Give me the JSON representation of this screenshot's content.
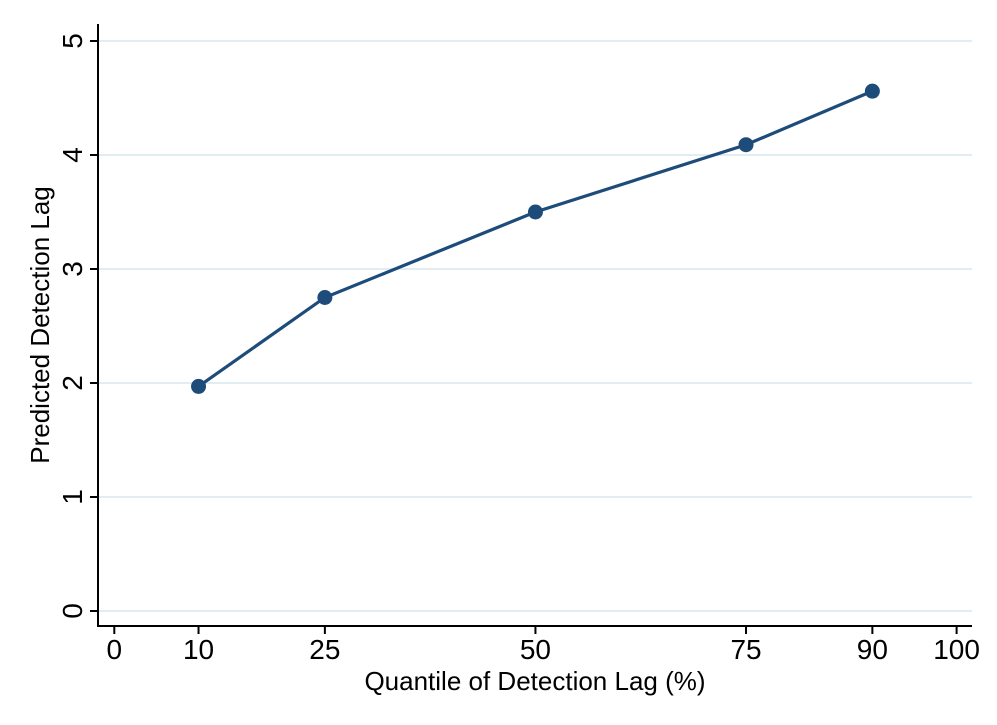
{
  "chart_data": {
    "type": "line",
    "title": "",
    "xlabel": "Quantile of Detection Lag (%)",
    "ylabel": "Predicted Detection Lag",
    "series": [
      {
        "name": "Predicted Detection Lag",
        "x": [
          10,
          25,
          50,
          75,
          90
        ],
        "y": [
          1.97,
          2.75,
          3.5,
          4.09,
          4.56
        ]
      }
    ],
    "x_ticks": [
      0,
      10,
      25,
      50,
      75,
      90,
      100
    ],
    "y_ticks": [
      0,
      1,
      2,
      3,
      4,
      5
    ],
    "xlim": [
      0,
      100
    ],
    "ylim": [
      0,
      5
    ],
    "grid": "horizontal-only",
    "legend": "none",
    "marker": "filled-circle",
    "colors": {
      "line": "#1e4c7a",
      "marker": "#1e4c7a",
      "grid": "#e2ecf3",
      "axis": "#000000",
      "background": "#ffffff"
    }
  }
}
